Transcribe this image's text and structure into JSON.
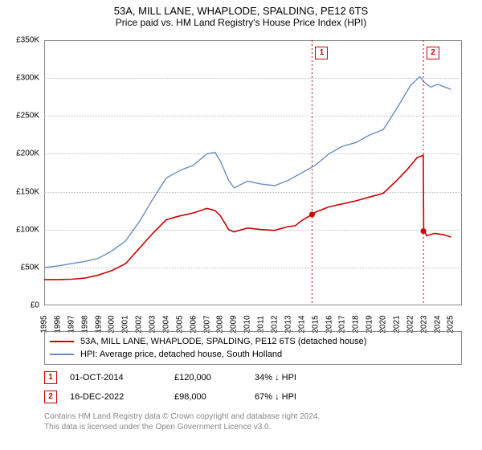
{
  "title": "53A, MILL LANE, WHAPLODE, SPALDING, PE12 6TS",
  "subtitle": "Price paid vs. HM Land Registry's House Price Index (HPI)",
  "chart": {
    "type": "line",
    "background_color": "#ffffff",
    "grid_color": "#c0c0c0",
    "ylim": [
      0,
      350000
    ],
    "ytick_step": 50000,
    "yticks": [
      "£0",
      "£50K",
      "£100K",
      "£150K",
      "£200K",
      "£250K",
      "£300K",
      "£350K"
    ],
    "xlim": [
      1995,
      2025.8
    ],
    "xticks": [
      "1995",
      "1996",
      "1997",
      "1998",
      "1999",
      "2000",
      "2001",
      "2002",
      "2003",
      "2004",
      "2005",
      "2006",
      "2007",
      "2008",
      "2009",
      "2010",
      "2011",
      "2012",
      "2013",
      "2014",
      "2015",
      "2016",
      "2017",
      "2018",
      "2019",
      "2020",
      "2021",
      "2022",
      "2023",
      "2024",
      "2025"
    ],
    "series": {
      "property": {
        "label": "53A, MILL LANE, WHAPLODE, SPALDING, PE12 6TS (detached house)",
        "color": "#d00000",
        "width": 1.6,
        "data": [
          [
            1995,
            34000
          ],
          [
            1996,
            34000
          ],
          [
            1997,
            34500
          ],
          [
            1998,
            36000
          ],
          [
            1999,
            40000
          ],
          [
            2000,
            46000
          ],
          [
            2001,
            55000
          ],
          [
            2002,
            75000
          ],
          [
            2003,
            95000
          ],
          [
            2004,
            113000
          ],
          [
            2005,
            118000
          ],
          [
            2006,
            122000
          ],
          [
            2007,
            128000
          ],
          [
            2007.6,
            125000
          ],
          [
            2008,
            118000
          ],
          [
            2008.6,
            100000
          ],
          [
            2009,
            97000
          ],
          [
            2010,
            102000
          ],
          [
            2011,
            100000
          ],
          [
            2012,
            99000
          ],
          [
            2013,
            104000
          ],
          [
            2013.5,
            105000
          ],
          [
            2014,
            112000
          ],
          [
            2014.75,
            120000
          ],
          [
            2015,
            123000
          ],
          [
            2016,
            130000
          ],
          [
            2017,
            134000
          ],
          [
            2018,
            138000
          ],
          [
            2019,
            143000
          ],
          [
            2020,
            148000
          ],
          [
            2021,
            165000
          ],
          [
            2021.8,
            180000
          ],
          [
            2022.5,
            195000
          ],
          [
            2022.95,
            198000
          ],
          [
            2022.98,
            100000
          ],
          [
            2023.2,
            92000
          ],
          [
            2023.8,
            95000
          ],
          [
            2024.5,
            93000
          ],
          [
            2025,
            90000
          ]
        ]
      },
      "hpi": {
        "label": "HPI: Average price, detached house, South Holland",
        "color": "#6b8cc4",
        "width": 1.4,
        "data": [
          [
            1995,
            50000
          ],
          [
            1996,
            52000
          ],
          [
            1997,
            55000
          ],
          [
            1998,
            58000
          ],
          [
            1999,
            62000
          ],
          [
            2000,
            72000
          ],
          [
            2001,
            85000
          ],
          [
            2002,
            110000
          ],
          [
            2003,
            140000
          ],
          [
            2004,
            168000
          ],
          [
            2005,
            178000
          ],
          [
            2006,
            185000
          ],
          [
            2007,
            200000
          ],
          [
            2007.6,
            202000
          ],
          [
            2008,
            190000
          ],
          [
            2008.6,
            165000
          ],
          [
            2009,
            155000
          ],
          [
            2010,
            164000
          ],
          [
            2011,
            160000
          ],
          [
            2012,
            158000
          ],
          [
            2013,
            165000
          ],
          [
            2014,
            175000
          ],
          [
            2015,
            185000
          ],
          [
            2016,
            200000
          ],
          [
            2017,
            210000
          ],
          [
            2018,
            215000
          ],
          [
            2019,
            225000
          ],
          [
            2020,
            232000
          ],
          [
            2021,
            260000
          ],
          [
            2022,
            290000
          ],
          [
            2022.7,
            302000
          ],
          [
            2023,
            295000
          ],
          [
            2023.5,
            288000
          ],
          [
            2024,
            292000
          ],
          [
            2025,
            285000
          ]
        ]
      }
    },
    "markers": [
      {
        "n": "1",
        "x": 2014.75,
        "y": 120000,
        "label_y": 342000
      },
      {
        "n": "2",
        "x": 2022.96,
        "y": 98000,
        "label_y": 342000
      }
    ]
  },
  "legend": {
    "rows": [
      {
        "color": "#d00000",
        "label": "53A, MILL LANE, WHAPLODE, SPALDING, PE12 6TS (detached house)"
      },
      {
        "color": "#6b8cc4",
        "label": "HPI: Average price, detached house, South Holland"
      }
    ]
  },
  "events": [
    {
      "n": "1",
      "date": "01-OCT-2014",
      "price": "£120,000",
      "diff": "34% ↓ HPI"
    },
    {
      "n": "2",
      "date": "16-DEC-2022",
      "price": "£98,000",
      "diff": "67% ↓ HPI"
    }
  ],
  "footer": {
    "line1": "Contains HM Land Registry data © Crown copyright and database right 2024.",
    "line2": "This data is licensed under the Open Government Licence v3.0."
  }
}
